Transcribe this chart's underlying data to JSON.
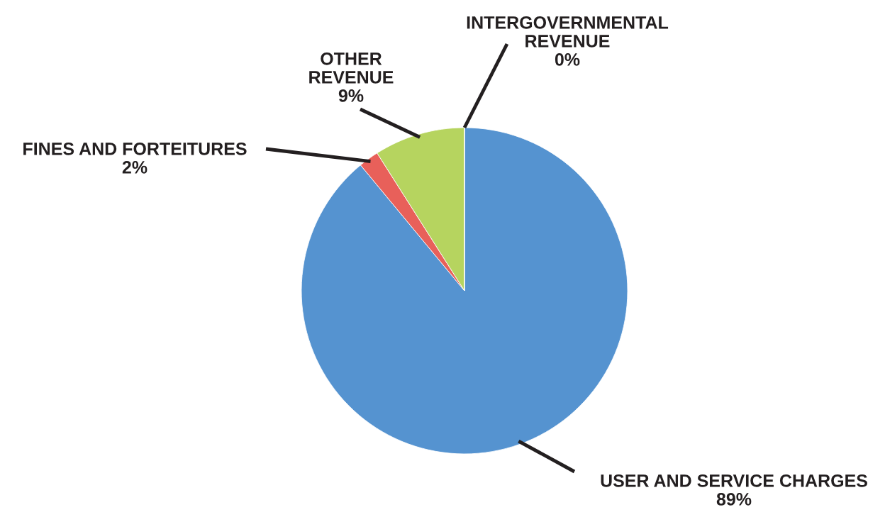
{
  "chart_data": {
    "type": "pie",
    "categories": [
      "USER AND SERVICE CHARGES",
      "FINES AND FORTEITURES",
      "OTHER\nREVENUE",
      "INTERGOVERNMENTAL\nREVENUE"
    ],
    "values": [
      89,
      2,
      9,
      0
    ],
    "colors": [
      "#5593d0",
      "#e8605a",
      "#b6d45f",
      "#8064a2"
    ],
    "value_labels": [
      "89%",
      "2%",
      "9%",
      "0%"
    ],
    "legend": false
  }
}
